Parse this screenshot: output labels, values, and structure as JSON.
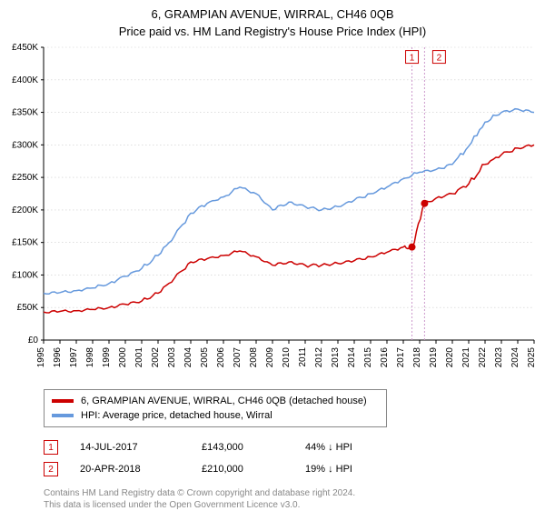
{
  "title_line1": "6, GRAMPIAN AVENUE, WIRRAL, CH46 0QB",
  "title_line2": "Price paid vs. HM Land Registry's House Price Index (HPI)",
  "chart": {
    "type": "line",
    "background_color": "#ffffff",
    "grid_color": "#cccccc",
    "axis_color": "#000000",
    "ylim": [
      0,
      450000
    ],
    "ytick_step": 50000,
    "ytick_labels": [
      "£0",
      "£50K",
      "£100K",
      "£150K",
      "£200K",
      "£250K",
      "£300K",
      "£350K",
      "£400K",
      "£450K"
    ],
    "xlim": [
      1995,
      2025
    ],
    "xtick_step": 1,
    "xtick_labels": [
      "1995",
      "1996",
      "1997",
      "1998",
      "1999",
      "2000",
      "2001",
      "2002",
      "2003",
      "2004",
      "2005",
      "2006",
      "2007",
      "2008",
      "2009",
      "2010",
      "2011",
      "2012",
      "2013",
      "2014",
      "2015",
      "2016",
      "2017",
      "2018",
      "2019",
      "2020",
      "2021",
      "2022",
      "2023",
      "2024",
      "2025"
    ],
    "label_fontsize": 10,
    "tick_fontsize": 10,
    "tick_color": "#000000",
    "line_width": 1.5,
    "series": [
      {
        "name": "property",
        "color": "#cc0000",
        "data": [
          [
            1995,
            43000
          ],
          [
            1996,
            44000
          ],
          [
            1997,
            45000
          ],
          [
            1998,
            47000
          ],
          [
            1999,
            50000
          ],
          [
            2000,
            55000
          ],
          [
            2001,
            60000
          ],
          [
            2002,
            72000
          ],
          [
            2003,
            95000
          ],
          [
            2004,
            120000
          ],
          [
            2005,
            125000
          ],
          [
            2006,
            130000
          ],
          [
            2007,
            137000
          ],
          [
            2008,
            128000
          ],
          [
            2009,
            115000
          ],
          [
            2010,
            120000
          ],
          [
            2011,
            115000
          ],
          [
            2012,
            115000
          ],
          [
            2013,
            118000
          ],
          [
            2014,
            122000
          ],
          [
            2015,
            128000
          ],
          [
            2016,
            135000
          ],
          [
            2017,
            143000
          ],
          [
            2017.55,
            143000
          ],
          [
            2018.3,
            210000
          ],
          [
            2019,
            218000
          ],
          [
            2020,
            225000
          ],
          [
            2021,
            240000
          ],
          [
            2022,
            270000
          ],
          [
            2023,
            285000
          ],
          [
            2024,
            295000
          ],
          [
            2025,
            300000
          ]
        ]
      },
      {
        "name": "hpi",
        "color": "#6699dd",
        "data": [
          [
            1995,
            72000
          ],
          [
            1996,
            73000
          ],
          [
            1997,
            76000
          ],
          [
            1998,
            80000
          ],
          [
            1999,
            87000
          ],
          [
            2000,
            98000
          ],
          [
            2001,
            110000
          ],
          [
            2002,
            130000
          ],
          [
            2003,
            160000
          ],
          [
            2004,
            195000
          ],
          [
            2005,
            210000
          ],
          [
            2006,
            220000
          ],
          [
            2007,
            235000
          ],
          [
            2008,
            225000
          ],
          [
            2009,
            200000
          ],
          [
            2010,
            212000
          ],
          [
            2011,
            205000
          ],
          [
            2012,
            200000
          ],
          [
            2013,
            205000
          ],
          [
            2014,
            215000
          ],
          [
            2015,
            225000
          ],
          [
            2016,
            235000
          ],
          [
            2017,
            248000
          ],
          [
            2018,
            258000
          ],
          [
            2019,
            262000
          ],
          [
            2020,
            270000
          ],
          [
            2021,
            298000
          ],
          [
            2022,
            335000
          ],
          [
            2023,
            350000
          ],
          [
            2024,
            355000
          ],
          [
            2025,
            350000
          ]
        ]
      }
    ],
    "event_markers": [
      {
        "num": "1",
        "x": 2017.53,
        "y": 143000,
        "line_color": "#cc99cc",
        "box_top_y": 445000
      },
      {
        "num": "2",
        "x": 2018.3,
        "y": 210000,
        "line_color": "#cc99cc",
        "box_top_y": 445000
      }
    ],
    "marker_box_border": "#cc0000",
    "marker_box_text_color": "#cc0000",
    "marker_dot_radius": 4
  },
  "legend": {
    "border_color": "#888888",
    "fontsize": 11,
    "items": [
      {
        "color": "#cc0000",
        "label": "6, GRAMPIAN AVENUE, WIRRAL, CH46 0QB (detached house)"
      },
      {
        "color": "#6699dd",
        "label": "HPI: Average price, detached house, Wirral"
      }
    ]
  },
  "events": [
    {
      "num": "1",
      "date": "14-JUL-2017",
      "price": "£143,000",
      "hpi_pct": "44% ↓ HPI"
    },
    {
      "num": "2",
      "date": "20-APR-2018",
      "price": "£210,000",
      "hpi_pct": "19% ↓ HPI"
    }
  ],
  "footer_line1": "Contains HM Land Registry data © Crown copyright and database right 2024.",
  "footer_line2": "This data is licensed under the Open Government Licence v3.0."
}
